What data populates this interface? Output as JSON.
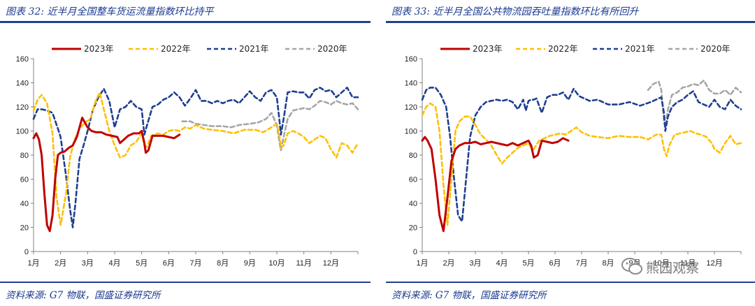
{
  "chart_data": [
    {
      "type": "line",
      "title": "图表 32:  近半月全国整车货运流量指数环比持平",
      "source": "资料来源:  G7 物联，国盛证券研究所",
      "xlabel": "",
      "ylabel": "",
      "x_ticks": [
        "1月",
        "2月",
        "3月",
        "4月",
        "5月",
        "6月",
        "7月",
        "8月",
        "9月",
        "10月",
        "11月",
        "12月"
      ],
      "xlim": [
        1,
        13
      ],
      "ylim": [
        0,
        160
      ],
      "y_ticks": [
        0,
        20,
        40,
        60,
        80,
        100,
        120,
        140,
        160
      ],
      "grid": false,
      "legend_position": "top",
      "series": [
        {
          "name": "2023年",
          "color": "#c00000",
          "style": "solid",
          "x": [
            1.0,
            1.1,
            1.2,
            1.3,
            1.4,
            1.5,
            1.6,
            1.7,
            1.8,
            1.9,
            2.0,
            2.15,
            2.3,
            2.45,
            2.6,
            2.8,
            3.0,
            3.15,
            3.3,
            3.5,
            3.7,
            3.9,
            4.1,
            4.2,
            4.3,
            4.5,
            4.7,
            4.9,
            5.0,
            5.1,
            5.15,
            5.25,
            5.4,
            5.6,
            5.8,
            6.0,
            6.2,
            6.4
          ],
          "y": [
            94,
            98,
            93,
            80,
            48,
            22,
            17,
            30,
            60,
            80,
            82,
            83,
            86,
            88,
            95,
            111,
            103,
            100,
            99,
            99,
            97,
            96,
            95,
            90,
            92,
            96,
            98,
            98,
            100,
            90,
            82,
            84,
            96,
            96,
            96,
            95,
            94,
            97
          ]
        },
        {
          "name": "2022年",
          "color": "#ffc000",
          "style": "dashed",
          "x": [
            1.0,
            1.15,
            1.3,
            1.5,
            1.7,
            1.85,
            2.0,
            2.2,
            2.35,
            2.5,
            2.7,
            2.9,
            3.1,
            3.3,
            3.45,
            3.6,
            3.8,
            4.0,
            4.2,
            4.4,
            4.6,
            4.8,
            5.0,
            5.1,
            5.2,
            5.35,
            5.6,
            5.8,
            6.0,
            6.2,
            6.4,
            6.6,
            6.8,
            7.0,
            7.3,
            7.6,
            8.0,
            8.4,
            8.8,
            9.2,
            9.5,
            9.8,
            10.0,
            10.1,
            10.15,
            10.25,
            10.4,
            10.6,
            10.8,
            11.0,
            11.2,
            11.4,
            11.6,
            11.8,
            12.0,
            12.2,
            12.4,
            12.6,
            12.8,
            13.0
          ],
          "y": [
            117,
            126,
            130,
            123,
            98,
            45,
            22,
            48,
            78,
            92,
            102,
            107,
            110,
            125,
            132,
            118,
            100,
            88,
            78,
            80,
            88,
            91,
            98,
            88,
            87,
            96,
            98,
            97,
            100,
            101,
            100,
            103,
            102,
            105,
            102,
            101,
            100,
            98,
            101,
            101,
            99,
            103,
            106,
            95,
            86,
            88,
            98,
            100,
            98,
            95,
            90,
            93,
            96,
            94,
            85,
            78,
            90,
            88,
            82,
            90
          ]
        },
        {
          "name": "2021年",
          "color": "#1f3f8f",
          "style": "dashed",
          "x": [
            1.0,
            1.15,
            1.3,
            1.5,
            1.7,
            1.9,
            2.0,
            2.2,
            2.35,
            2.45,
            2.55,
            2.7,
            2.85,
            3.0,
            3.2,
            3.4,
            3.6,
            3.8,
            4.0,
            4.2,
            4.4,
            4.6,
            4.8,
            5.0,
            5.1,
            5.2,
            5.4,
            5.6,
            5.8,
            6.0,
            6.2,
            6.4,
            6.6,
            6.8,
            7.0,
            7.2,
            7.4,
            7.6,
            7.8,
            8.0,
            8.2,
            8.4,
            8.6,
            8.8,
            9.0,
            9.2,
            9.4,
            9.6,
            9.8,
            10.0,
            10.1,
            10.15,
            10.25,
            10.4,
            10.6,
            10.8,
            11.0,
            11.2,
            11.4,
            11.6,
            11.8,
            12.0,
            12.2,
            12.4,
            12.6,
            12.8,
            13.0
          ],
          "y": [
            110,
            118,
            118,
            117,
            115,
            102,
            95,
            63,
            35,
            20,
            40,
            77,
            88,
            100,
            118,
            128,
            135,
            125,
            103,
            118,
            120,
            125,
            120,
            118,
            97,
            105,
            120,
            122,
            126,
            128,
            132,
            128,
            121,
            127,
            134,
            125,
            125,
            123,
            125,
            123,
            125,
            126,
            123,
            128,
            133,
            128,
            125,
            132,
            134,
            128,
            108,
            97,
            110,
            132,
            133,
            132,
            132,
            127,
            134,
            136,
            133,
            134,
            128,
            132,
            136,
            128,
            128
          ]
        },
        {
          "name": "2020年",
          "color": "#a6a6a6",
          "style": "dashed",
          "x": [
            6.5,
            6.8,
            7.0,
            7.3,
            7.6,
            8.0,
            8.3,
            8.6,
            9.0,
            9.3,
            9.6,
            9.8,
            10.0,
            10.1,
            10.15,
            10.25,
            10.4,
            10.6,
            10.8,
            11.0,
            11.2,
            11.4,
            11.6,
            11.8,
            12.0,
            12.2,
            12.4,
            12.6,
            12.8,
            13.0
          ],
          "y": [
            108,
            108,
            106,
            105,
            104,
            104,
            103,
            105,
            106,
            107,
            110,
            115,
            105,
            90,
            84,
            95,
            110,
            117,
            118,
            119,
            118,
            121,
            125,
            124,
            122,
            125,
            123,
            122,
            123,
            118
          ]
        }
      ]
    },
    {
      "type": "line",
      "title": "图表 33:  近半月全国公共物流园吞吐量指数环比有所回升",
      "source": "资料来源:  G7 物联，国盛证券研究所",
      "watermark": "熊园观察",
      "xlabel": "",
      "ylabel": "",
      "x_ticks": [
        "1月",
        "2月",
        "3月",
        "4月",
        "5月",
        "6月",
        "7月",
        "8月",
        "9月",
        "10月",
        "11月",
        "12月"
      ],
      "xlim": [
        1,
        13
      ],
      "ylim": [
        0,
        160
      ],
      "y_ticks": [
        0,
        20,
        40,
        60,
        80,
        100,
        120,
        140,
        160
      ],
      "grid": false,
      "legend_position": "top",
      "series": [
        {
          "name": "2023年",
          "color": "#c00000",
          "style": "solid",
          "x": [
            1.0,
            1.1,
            1.2,
            1.35,
            1.5,
            1.65,
            1.8,
            1.95,
            2.1,
            2.25,
            2.4,
            2.6,
            2.8,
            3.0,
            3.2,
            3.4,
            3.6,
            3.8,
            4.0,
            4.2,
            4.4,
            4.6,
            4.8,
            5.0,
            5.1,
            5.2,
            5.35,
            5.5,
            5.7,
            5.9,
            6.1,
            6.3,
            6.5
          ],
          "y": [
            92,
            95,
            92,
            85,
            60,
            30,
            17,
            45,
            75,
            85,
            88,
            90,
            90,
            91,
            89,
            90,
            91,
            90,
            89,
            88,
            90,
            88,
            90,
            92,
            88,
            78,
            80,
            92,
            91,
            90,
            91,
            94,
            92
          ]
        },
        {
          "name": "2022年",
          "color": "#ffc000",
          "style": "dashed",
          "x": [
            1.0,
            1.15,
            1.3,
            1.5,
            1.65,
            1.8,
            1.95,
            2.1,
            2.25,
            2.4,
            2.6,
            2.8,
            3.0,
            3.2,
            3.4,
            3.6,
            3.8,
            4.0,
            4.2,
            4.4,
            4.6,
            4.8,
            5.0,
            5.1,
            5.2,
            5.4,
            5.6,
            5.8,
            6.0,
            6.2,
            6.4,
            6.6,
            6.8,
            7.0,
            7.3,
            7.6,
            8.0,
            8.4,
            8.8,
            9.2,
            9.5,
            9.8,
            10.0,
            10.1,
            10.2,
            10.3,
            10.5,
            10.7,
            10.9,
            11.1,
            11.3,
            11.5,
            11.7,
            11.9,
            12.0,
            12.2,
            12.4,
            12.6,
            12.8,
            13.0
          ],
          "y": [
            113,
            120,
            123,
            120,
            100,
            55,
            22,
            60,
            100,
            108,
            112,
            112,
            105,
            97,
            93,
            88,
            80,
            73,
            78,
            82,
            86,
            88,
            90,
            86,
            85,
            92,
            94,
            96,
            97,
            98,
            97,
            100,
            103,
            99,
            96,
            95,
            94,
            96,
            95,
            95,
            93,
            97,
            97,
            85,
            79,
            88,
            97,
            98,
            99,
            100,
            98,
            97,
            95,
            90,
            85,
            82,
            90,
            96,
            89,
            90
          ]
        },
        {
          "name": "2021年",
          "color": "#1f3f8f",
          "style": "dashed",
          "x": [
            1.0,
            1.15,
            1.3,
            1.5,
            1.7,
            1.9,
            2.05,
            2.2,
            2.35,
            2.5,
            2.65,
            2.8,
            3.0,
            3.2,
            3.4,
            3.6,
            3.8,
            4.0,
            4.2,
            4.4,
            4.6,
            4.8,
            4.9,
            5.0,
            5.1,
            5.2,
            5.3,
            5.5,
            5.7,
            5.9,
            6.1,
            6.3,
            6.5,
            6.7,
            6.9,
            7.1,
            7.3,
            7.6,
            8.0,
            8.4,
            8.8,
            9.2,
            9.6,
            10.0,
            10.1,
            10.15,
            10.25,
            10.4,
            10.6,
            10.8,
            11.0,
            11.2,
            11.4,
            11.6,
            11.8,
            12.0,
            12.2,
            12.4,
            12.6,
            12.8,
            13.0
          ],
          "y": [
            126,
            134,
            136,
            136,
            130,
            120,
            95,
            60,
            30,
            25,
            60,
            95,
            113,
            120,
            124,
            125,
            126,
            125,
            126,
            124,
            118,
            126,
            117,
            125,
            126,
            126,
            127,
            115,
            128,
            130,
            130,
            132,
            126,
            135,
            129,
            127,
            125,
            126,
            122,
            122,
            124,
            121,
            124,
            128,
            115,
            100,
            112,
            120,
            124,
            126,
            130,
            133,
            124,
            122,
            120,
            126,
            120,
            118,
            126,
            121,
            118
          ]
        },
        {
          "name": "2020年",
          "color": "#a6a6a6",
          "style": "dashed",
          "x": [
            9.5,
            9.7,
            9.9,
            10.0,
            10.1,
            10.15,
            10.25,
            10.4,
            10.6,
            10.8,
            11.0,
            11.2,
            11.4,
            11.6,
            11.8,
            12.0,
            12.2,
            12.4,
            12.6,
            12.8,
            13.0
          ],
          "y": [
            134,
            139,
            141,
            134,
            108,
            103,
            118,
            130,
            132,
            136,
            137,
            139,
            138,
            142,
            134,
            131,
            131,
            134,
            130,
            136,
            132
          ]
        }
      ]
    }
  ]
}
